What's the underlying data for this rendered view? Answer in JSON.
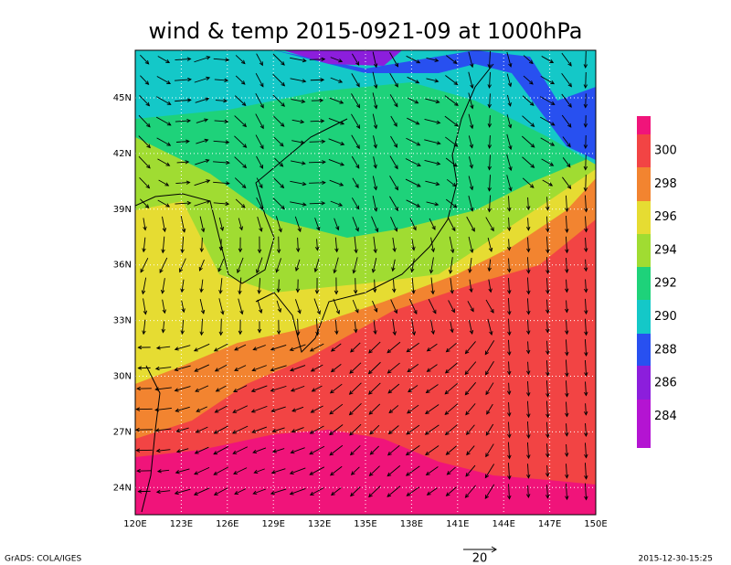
{
  "header": {
    "title": "wind & temp 2015-0921-09 at 1000hPa"
  },
  "map": {
    "lat_ticks": [
      "45N",
      "42N",
      "39N",
      "36N",
      "33N",
      "30N",
      "27N",
      "24N"
    ],
    "lon_ticks": [
      "120E",
      "123E",
      "126E",
      "129E",
      "132E",
      "135E",
      "138E",
      "141E",
      "144E",
      "147E",
      "150E"
    ]
  },
  "colorbar": {
    "labels": [
      300,
      298,
      296,
      294,
      292,
      290,
      288,
      286,
      284
    ]
  },
  "footer": {
    "left": "GrADS: COLA/IGES",
    "vector_reference": "20",
    "right": "2015-12-30-15:25"
  }
}
